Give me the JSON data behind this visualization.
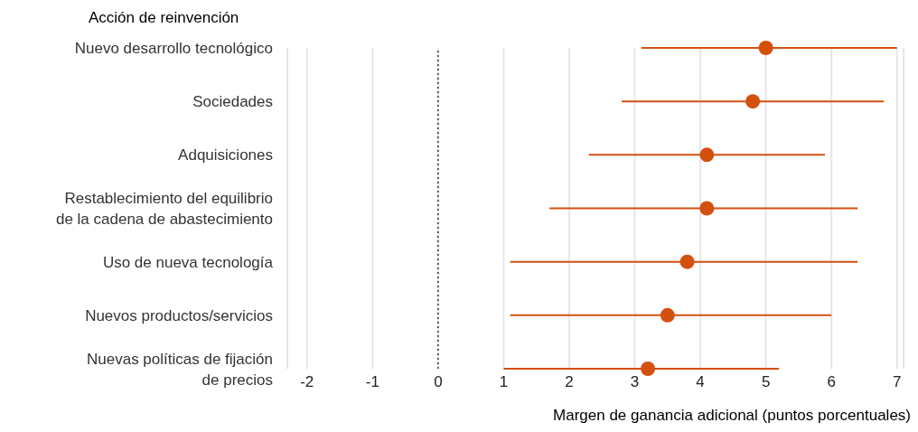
{
  "chart_data": {
    "type": "scatter",
    "orientation": "horizontal",
    "ylabel": "Acción de reinvención",
    "xlabel": "Margen de ganancia adicional (puntos porcentuales)",
    "categories": [
      "Nuevo desarrollo tecnológico",
      "Sociedades",
      "Adquisiciones",
      "Restablecimiento del equilibrio\nde la cadena de abastecimiento",
      "Uso de nueva tecnología",
      "Nuevos productos/servicios",
      "Nuevas políticas de fijación\nde precios"
    ],
    "values": [
      5.0,
      4.8,
      4.1,
      4.1,
      3.8,
      3.5,
      3.2
    ],
    "errors": [
      [
        3.1,
        7.0
      ],
      [
        2.8,
        6.8
      ],
      [
        2.3,
        5.9
      ],
      [
        1.7,
        6.4
      ],
      [
        1.1,
        6.4
      ],
      [
        1.1,
        6.0
      ],
      [
        1.0,
        5.2
      ]
    ],
    "color": "#d4500f",
    "marker": "circle",
    "grid": "x",
    "xlim": [
      -2.3,
      7.1
    ],
    "xticks": [
      -2,
      -1,
      0,
      1,
      2,
      3,
      4,
      5,
      6,
      7
    ],
    "ref_lines": [
      {
        "axis": "x",
        "value": 0,
        "color": "#333333",
        "line_style": "dotted"
      }
    ]
  }
}
